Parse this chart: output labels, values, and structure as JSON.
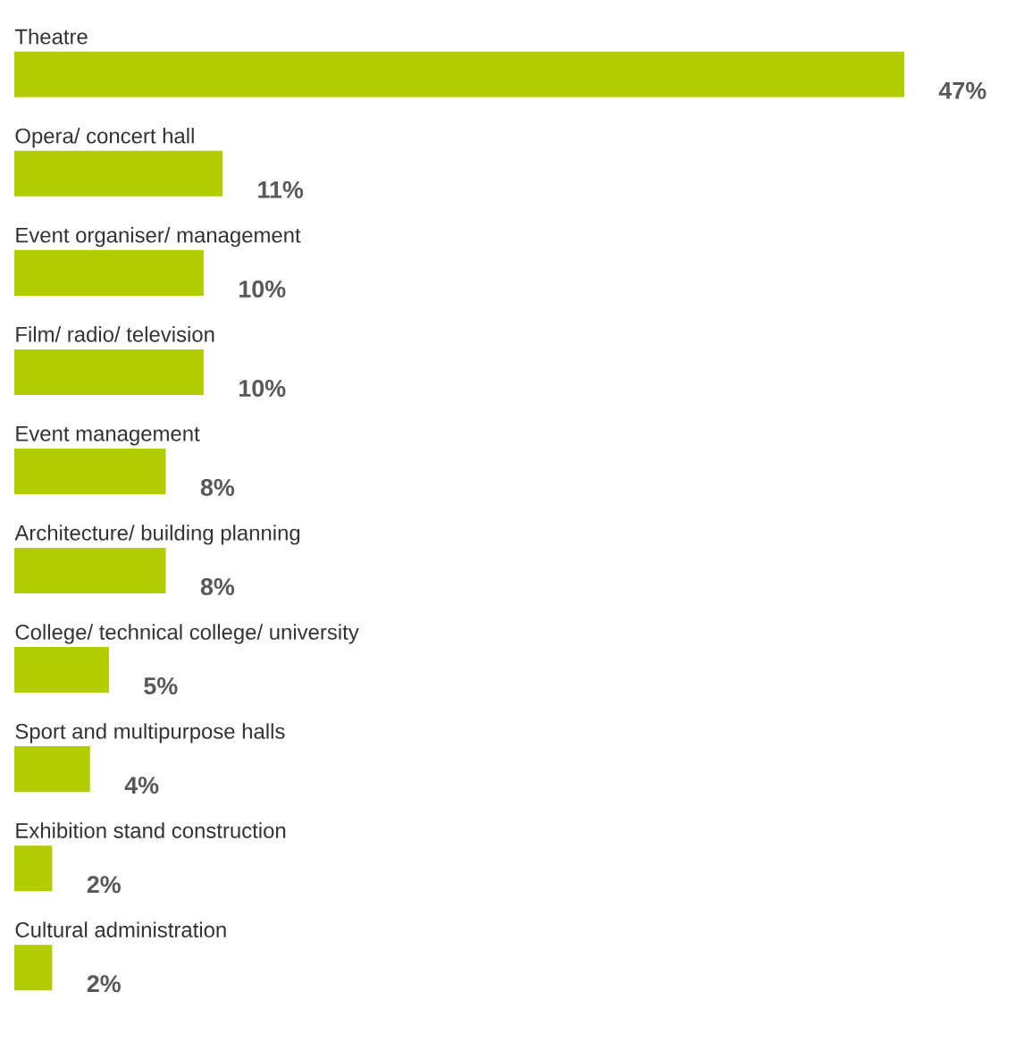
{
  "chart_data": {
    "type": "bar",
    "orientation": "horizontal",
    "color": "#b3cc00",
    "categories": [
      "Theatre",
      "Opera/ concert hall",
      "Event organiser/ management",
      "Film/ radio/ television",
      "Event management",
      "Architecture/ building planning",
      "College/ technical college/ university",
      "Sport and multipurpose halls",
      "Exhibition stand construction",
      "Cultural administration"
    ],
    "values": [
      47,
      11,
      10,
      10,
      8,
      8,
      5,
      4,
      2,
      2
    ],
    "value_labels": [
      "47%",
      "11%",
      "10%",
      "10%",
      "8%",
      "8%",
      "5%",
      "4%",
      "2%",
      "2%"
    ]
  }
}
